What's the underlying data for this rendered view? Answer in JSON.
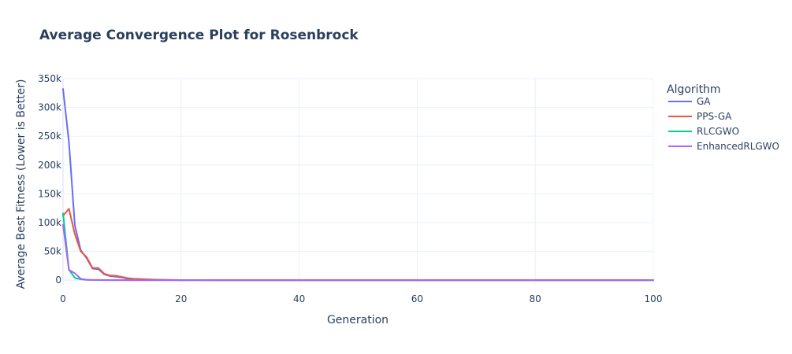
{
  "chart_data": {
    "type": "line",
    "title": "Average Convergence Plot for Rosenbrock",
    "xlabel": "Generation",
    "ylabel": "Average Best Fitness (Lower is Better)",
    "xlim": [
      0,
      100
    ],
    "ylim": [
      -8000,
      350000
    ],
    "xticks": [
      0,
      20,
      40,
      60,
      80,
      100
    ],
    "xtick_labels": [
      "0",
      "20",
      "40",
      "60",
      "80",
      "100"
    ],
    "yticks": [
      0,
      50000,
      100000,
      150000,
      200000,
      250000,
      300000,
      350000
    ],
    "ytick_labels": [
      "0",
      "50k",
      "100k",
      "150k",
      "200k",
      "250k",
      "300k",
      "350k"
    ],
    "grid": true,
    "legend": {
      "title": "Algorithm",
      "placement": "right"
    },
    "series": [
      {
        "name": "GA",
        "color": "#636efa",
        "x": [
          0,
          1,
          2,
          3,
          4,
          5,
          6,
          7,
          8,
          9,
          10,
          11,
          12,
          13,
          14,
          15,
          16,
          17,
          18,
          19,
          20,
          25,
          30,
          40,
          50,
          60,
          70,
          80,
          90,
          100
        ],
        "y": [
          332000,
          240000,
          95000,
          52000,
          38000,
          20000,
          19000,
          10000,
          7000,
          6000,
          4500,
          2500,
          2000,
          1500,
          1200,
          800,
          600,
          400,
          300,
          200,
          100,
          50,
          30,
          20,
          10,
          10,
          10,
          10,
          10,
          10
        ]
      },
      {
        "name": "PPS-GA",
        "color": "#ef553b",
        "x": [
          0,
          1,
          2,
          3,
          4,
          5,
          6,
          7,
          8,
          9,
          10,
          11,
          12,
          13,
          14,
          15,
          16,
          17,
          18,
          19,
          20,
          25,
          30,
          40,
          50,
          60,
          70,
          80,
          90,
          100
        ],
        "y": [
          112000,
          124000,
          80000,
          50000,
          40000,
          21000,
          21000,
          11000,
          8000,
          7500,
          5500,
          3500,
          2500,
          2000,
          1600,
          1200,
          900,
          700,
          500,
          300,
          200,
          80,
          40,
          20,
          10,
          10,
          10,
          10,
          10,
          10
        ]
      },
      {
        "name": "RLCGWO",
        "color": "#00cc96",
        "x": [
          0,
          1,
          2,
          3,
          4,
          5,
          6,
          8,
          10,
          15,
          20,
          30,
          40,
          50,
          60,
          70,
          80,
          90,
          100
        ],
        "y": [
          116000,
          18000,
          4000,
          1500,
          600,
          300,
          200,
          100,
          50,
          20,
          10,
          5,
          5,
          5,
          5,
          5,
          5,
          5,
          5
        ]
      },
      {
        "name": "EnhancedRLGWO",
        "color": "#ab63fa",
        "x": [
          0,
          1,
          2,
          3,
          4,
          5,
          6,
          8,
          10,
          15,
          20,
          30,
          40,
          50,
          60,
          70,
          80,
          90,
          100
        ],
        "y": [
          96000,
          18000,
          12000,
          2500,
          800,
          400,
          300,
          150,
          80,
          30,
          10,
          5,
          5,
          5,
          5,
          5,
          5,
          5,
          5
        ]
      }
    ]
  }
}
